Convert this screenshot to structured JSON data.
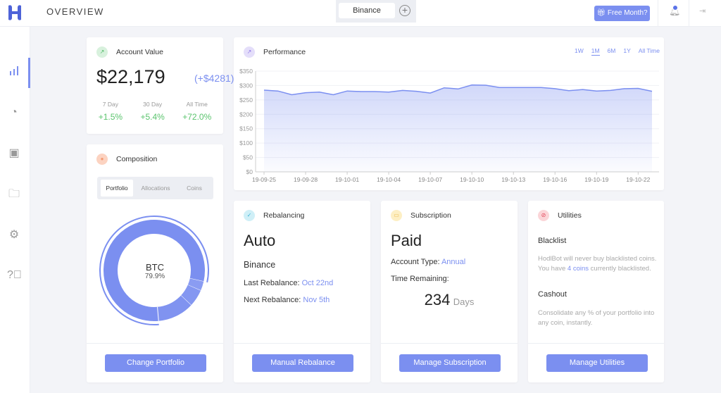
{
  "header": {
    "title": "OVERVIEW",
    "tab": "Binance",
    "add_tab": "+",
    "free_month": "Free Month?",
    "notification_count": "",
    "colors": {
      "accent": "#7b8ff0"
    }
  },
  "sidebar": {
    "items": [
      {
        "icon": "bar-chart-icon",
        "active": true
      },
      {
        "icon": "pie-chart-icon"
      },
      {
        "icon": "chip-icon"
      },
      {
        "icon": "folder-icon"
      },
      {
        "icon": "gear-icon"
      },
      {
        "icon": "help-icon"
      }
    ]
  },
  "account": {
    "title": "Account Value",
    "value": "$22,179",
    "change": "(+$4281)",
    "stats": [
      {
        "label": "7 Day",
        "value": "+1.5%"
      },
      {
        "label": "30 Day",
        "value": "+5.4%"
      },
      {
        "label": "All Time",
        "value": "+72.0%"
      }
    ]
  },
  "composition": {
    "title": "Composition",
    "tabs": [
      "Portfolio",
      "Allocations",
      "Coins"
    ],
    "active_tab": "Portfolio",
    "center_label": "BTC",
    "center_value": "79.9%",
    "slices": [
      79.9,
      3.0,
      5.5,
      11.6
    ],
    "button": "Change Portfolio"
  },
  "performance": {
    "title": "Performance",
    "ranges": [
      "1W",
      "1M",
      "6M",
      "1Y",
      "All Time"
    ],
    "active_range": "1M"
  },
  "chart_data": {
    "type": "area",
    "x": [
      "19-09-25",
      "19-09-26",
      "19-09-27",
      "19-09-28",
      "19-09-29",
      "19-09-30",
      "19-10-01",
      "19-10-02",
      "19-10-03",
      "19-10-04",
      "19-10-05",
      "19-10-06",
      "19-10-07",
      "19-10-08",
      "19-10-09",
      "19-10-10",
      "19-10-11",
      "19-10-12",
      "19-10-13",
      "19-10-14",
      "19-10-15",
      "19-10-16",
      "19-10-17",
      "19-10-18",
      "19-10-19",
      "19-10-20",
      "19-10-21",
      "19-10-22",
      "19-10-23"
    ],
    "values": [
      284,
      281,
      268,
      275,
      277,
      268,
      281,
      279,
      279,
      277,
      283,
      280,
      274,
      292,
      288,
      302,
      301,
      293,
      293,
      293,
      293,
      289,
      282,
      286,
      281,
      283,
      289,
      290,
      280
    ],
    "xticks": [
      "19-09-25",
      "19-09-28",
      "19-10-01",
      "19-10-04",
      "19-10-07",
      "19-10-10",
      "19-10-13",
      "19-10-16",
      "19-10-19",
      "19-10-22"
    ],
    "yticks": [
      "$0",
      "$50",
      "$100",
      "$150",
      "$200",
      "$250",
      "$300",
      "$350"
    ],
    "ylim": [
      0,
      350
    ],
    "grid": true,
    "color": "#7b8ff0"
  },
  "rebalancing": {
    "title": "Rebalancing",
    "mode": "Auto",
    "exchange": "Binance",
    "last_label": "Last Rebalance:",
    "last_value": "Oct 22nd",
    "next_label": "Next Rebalance:",
    "next_value": "Nov 5th",
    "button": "Manual Rebalance"
  },
  "subscription": {
    "title": "Subscription",
    "status": "Paid",
    "type_label": "Account Type:",
    "type_value": "Annual",
    "remaining_label": "Time Remaining:",
    "days": "234",
    "days_unit": "Days",
    "button": "Manage Subscription"
  },
  "utilities": {
    "title": "Utilities",
    "blacklist_title": "Blacklist",
    "blacklist_text_1": "HodlBot will never buy blacklisted coins. You have ",
    "blacklist_link": "4 coins",
    "blacklist_text_2": " currently blacklisted.",
    "cashout_title": "Cashout",
    "cashout_text": "Consolidate any % of your portfolio into any coin, instantly.",
    "button": "Manage Utilities"
  }
}
